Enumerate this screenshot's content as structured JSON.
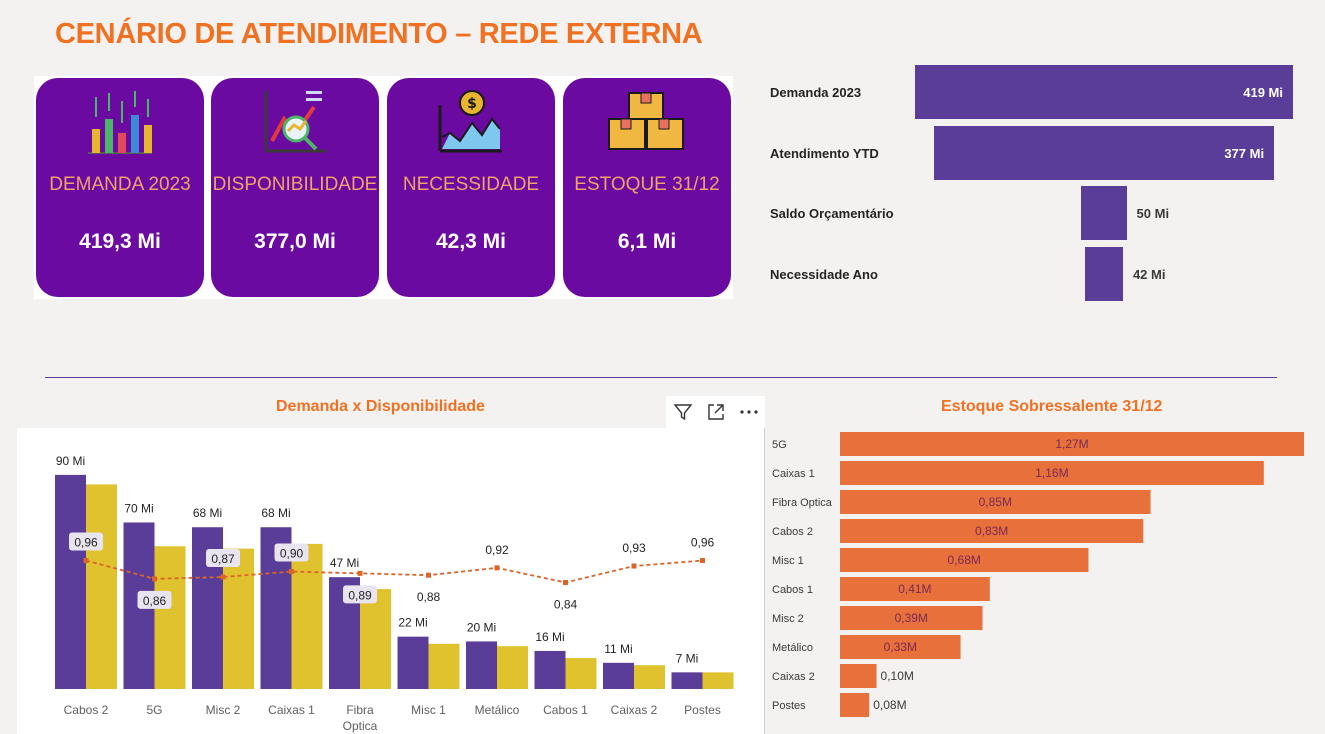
{
  "page": {
    "title": "CENÁRIO DE ATENDIMENTO – REDE EXTERNA"
  },
  "kpis": [
    {
      "label": "DEMANDA 2023",
      "value": "419,3 Mi",
      "icon": "bar-chart-icon"
    },
    {
      "label": "DISPONIBILIDADE",
      "value": "377,0 Mi",
      "icon": "trend-chart-icon"
    },
    {
      "label": "NECESSIDADE",
      "value": "42,3 Mi",
      "icon": "money-chart-icon"
    },
    {
      "label": "ESTOQUE 31/12",
      "value": "6,1 Mi",
      "icon": "boxes-icon"
    }
  ],
  "sections": {
    "combo_title": "Demanda x Disponibilidade",
    "stock_title": "Estoque Sobressalente 31/12"
  },
  "toolbar": {
    "filter_icon": "filter-icon",
    "focus_icon": "focus-mode-icon",
    "more_icon": "more-options-icon"
  },
  "colors": {
    "title": "#f07122",
    "kpi_bg": "#6a0aa0",
    "kpi_label": "#f0a26a",
    "purple": "#5a3d99",
    "yellow": "#e0c22e",
    "orange": "#e8703a",
    "line": "#d9652a"
  },
  "chart_data": [
    {
      "type": "funnel",
      "categories": [
        "Demanda 2023",
        "Atendimento YTD",
        "Saldo Orçamentário",
        "Necessidade Ano"
      ],
      "values": [
        419,
        377,
        50,
        42
      ],
      "value_labels": [
        "419 Mi",
        "377 Mi",
        "50 Mi",
        "42 Mi"
      ]
    },
    {
      "type": "bar",
      "title": "Demanda x Disponibilidade",
      "categories": [
        "Cabos 2",
        "5G",
        "Misc 2",
        "Caixas 1",
        "Fibra Optica",
        "Misc 1",
        "Metálico",
        "Cabos 1",
        "Caixas 2",
        "Postes"
      ],
      "series": [
        {
          "values": [
            90,
            70,
            68,
            68,
            47,
            22,
            20,
            16,
            11,
            7
          ],
          "labels": [
            "90 Mi",
            "70 Mi",
            "68 Mi",
            "68 Mi",
            "47 Mi",
            "22 Mi",
            "20 Mi",
            "16 Mi",
            "11 Mi",
            "7 Mi"
          ]
        },
        {
          "values": [
            86,
            60,
            59,
            61,
            42,
            19,
            18,
            13,
            10,
            7
          ]
        },
        {
          "type": "line",
          "values": [
            0.96,
            0.86,
            0.87,
            0.9,
            0.89,
            0.88,
            0.92,
            0.84,
            0.93,
            0.96
          ],
          "labels": [
            "0,96",
            "0,86",
            "0,87",
            "0,90",
            "0,89",
            "0,88",
            "0,92",
            "0,84",
            "0,93",
            "0,96"
          ]
        }
      ],
      "ylim": [
        0,
        95
      ],
      "grid": false
    },
    {
      "type": "bar",
      "orientation": "horizontal",
      "title": "Estoque Sobressalente 31/12",
      "categories": [
        "5G",
        "Caixas 1",
        "Fibra Optica",
        "Cabos 2",
        "Misc 1",
        "Cabos 1",
        "Misc 2",
        "Metálico",
        "Caixas 2",
        "Postes"
      ],
      "values": [
        1.27,
        1.16,
        0.85,
        0.83,
        0.68,
        0.41,
        0.39,
        0.33,
        0.1,
        0.08
      ],
      "value_labels": [
        "1,27M",
        "1,16M",
        "0,85M",
        "0,83M",
        "0,68M",
        "0,41M",
        "0,39M",
        "0,33M",
        "0,10M",
        "0,08M"
      ]
    }
  ]
}
